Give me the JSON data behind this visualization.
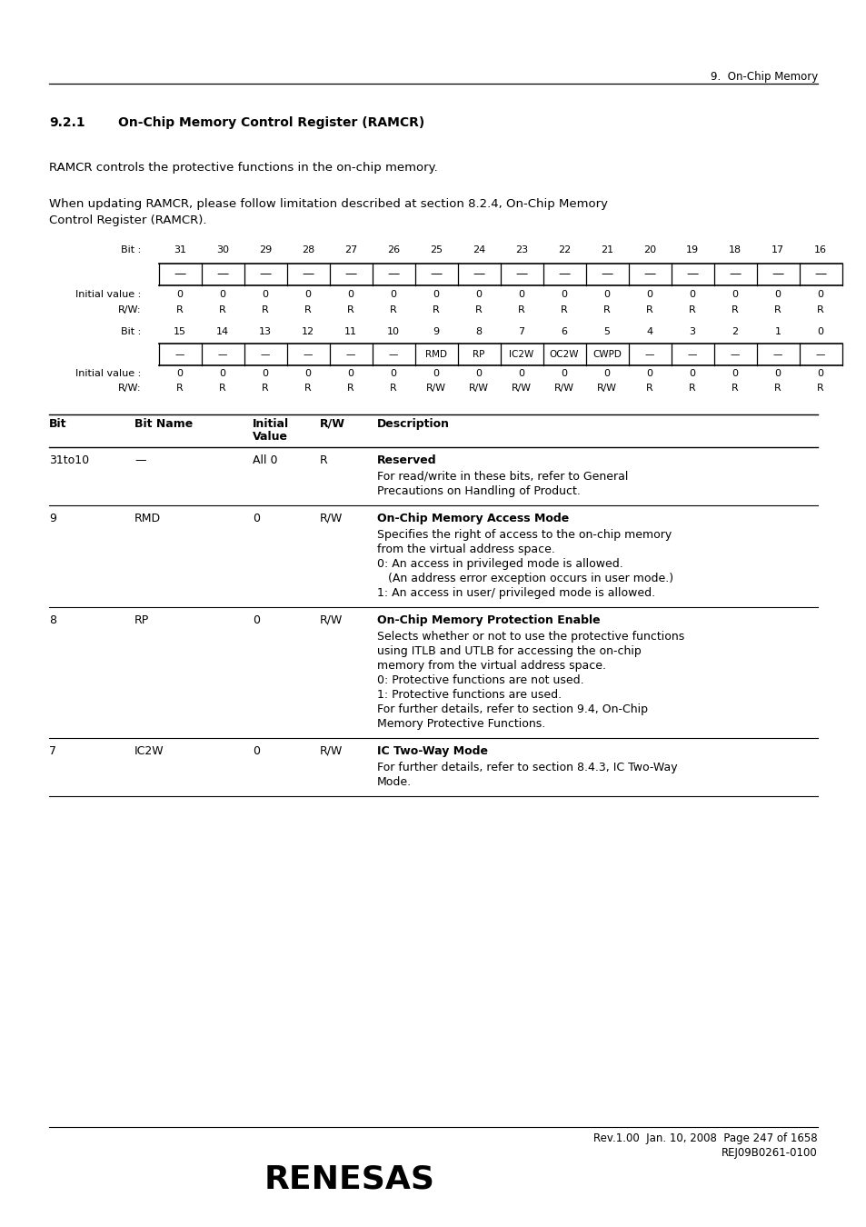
{
  "page_header": "9.  On-Chip Memory",
  "section_num": "9.2.1",
  "section_title": "On-Chip Memory Control Register (RAMCR)",
  "para1": "RAMCR controls the protective functions in the on-chip memory.",
  "para2a": "When updating RAMCR, please follow limitation described at section 8.2.4, On-Chip Memory",
  "para2b": "Control Register (RAMCR).",
  "reg_upper_bits": [
    "31",
    "30",
    "29",
    "28",
    "27",
    "26",
    "25",
    "24",
    "23",
    "22",
    "21",
    "20",
    "19",
    "18",
    "17",
    "16"
  ],
  "reg_upper_names": [
    "—",
    "—",
    "—",
    "—",
    "—",
    "—",
    "—",
    "—",
    "—",
    "—",
    "—",
    "—",
    "—",
    "—",
    "—",
    "—"
  ],
  "reg_upper_init": [
    "0",
    "0",
    "0",
    "0",
    "0",
    "0",
    "0",
    "0",
    "0",
    "0",
    "0",
    "0",
    "0",
    "0",
    "0",
    "0"
  ],
  "reg_upper_rw": [
    "R",
    "R",
    "R",
    "R",
    "R",
    "R",
    "R",
    "R",
    "R",
    "R",
    "R",
    "R",
    "R",
    "R",
    "R",
    "R"
  ],
  "reg_lower_bits": [
    "15",
    "14",
    "13",
    "12",
    "11",
    "10",
    "9",
    "8",
    "7",
    "6",
    "5",
    "4",
    "3",
    "2",
    "1",
    "0"
  ],
  "reg_lower_names": [
    "—",
    "—",
    "—",
    "—",
    "—",
    "—",
    "RMD",
    "RP",
    "IC2W",
    "OC2W",
    "CWPD",
    "—",
    "—",
    "—",
    "—",
    "—"
  ],
  "reg_lower_init": [
    "0",
    "0",
    "0",
    "0",
    "0",
    "0",
    "0",
    "0",
    "0",
    "0",
    "0",
    "0",
    "0",
    "0",
    "0",
    "0"
  ],
  "reg_lower_rw": [
    "R",
    "R",
    "R",
    "R",
    "R",
    "R",
    "R/W",
    "R/W",
    "R/W",
    "R/W",
    "R/W",
    "R",
    "R",
    "R",
    "R",
    "R"
  ],
  "table_rows": [
    {
      "bit": "31to10",
      "name": "—",
      "init": "All 0",
      "rw": "R",
      "desc_bold": "Reserved",
      "desc_lines": [
        "For read/write in these bits, refer to General",
        "Precautions on Handling of Product."
      ]
    },
    {
      "bit": "9",
      "name": "RMD",
      "init": "0",
      "rw": "R/W",
      "desc_bold": "On-Chip Memory Access Mode",
      "desc_lines": [
        "Specifies the right of access to the on-chip memory",
        "from the virtual address space.",
        "0: An access in privileged mode is allowed.",
        "   (An address error exception occurs in user mode.)",
        "1: An access in user/ privileged mode is allowed."
      ]
    },
    {
      "bit": "8",
      "name": "RP",
      "init": "0",
      "rw": "R/W",
      "desc_bold": "On-Chip Memory Protection Enable",
      "desc_lines": [
        "Selects whether or not to use the protective functions",
        "using ITLB and UTLB for accessing the on-chip",
        "memory from the virtual address space.",
        "0: Protective functions are not used.",
        "1: Protective functions are used.",
        "For further details, refer to section 9.4, On-Chip",
        "Memory Protective Functions."
      ]
    },
    {
      "bit": "7",
      "name": "IC2W",
      "init": "0",
      "rw": "R/W",
      "desc_bold": "IC Two-Way Mode",
      "desc_lines": [
        "For further details, refer to section 8.4.3, IC Two-Way",
        "Mode."
      ]
    }
  ],
  "footer_line1": "Rev.1.00  Jan. 10, 2008  Page 247 of 1658",
  "footer_line2": "REJ09B0261-0100",
  "bg_color": "#ffffff",
  "text_color": "#000000"
}
